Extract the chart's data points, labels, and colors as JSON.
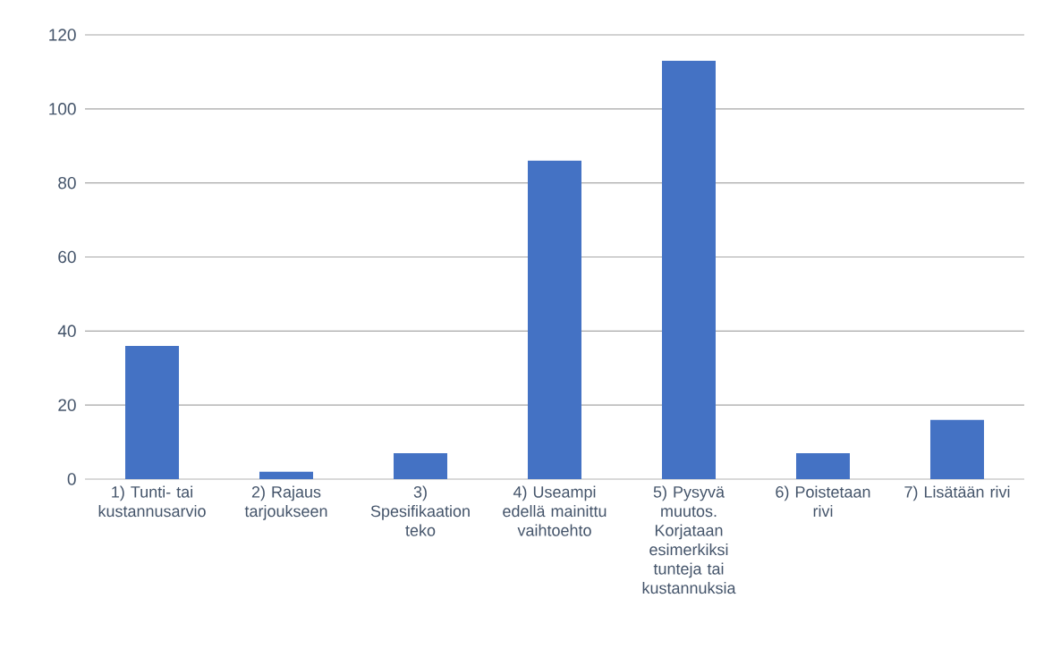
{
  "chart_data": {
    "type": "bar",
    "categories": [
      "1) Tunti- tai kustannusarvio",
      "2) Rajaus tarjoukseen",
      "3) Spesifikaation teko",
      "4) Useampi edellä mainittu vaihtoehto",
      "5) Pysyvä muutos. Korjataan esimerkiksi tunteja tai kustannuksia",
      "6) Poistetaan rivi",
      "7) Lisätään rivi"
    ],
    "values": [
      36,
      2,
      7,
      86,
      113,
      7,
      16
    ],
    "color": "#4472c4",
    "ylim": [
      0,
      120
    ],
    "yticks": [
      0,
      20,
      40,
      60,
      80,
      100,
      120
    ],
    "grid": "y"
  }
}
